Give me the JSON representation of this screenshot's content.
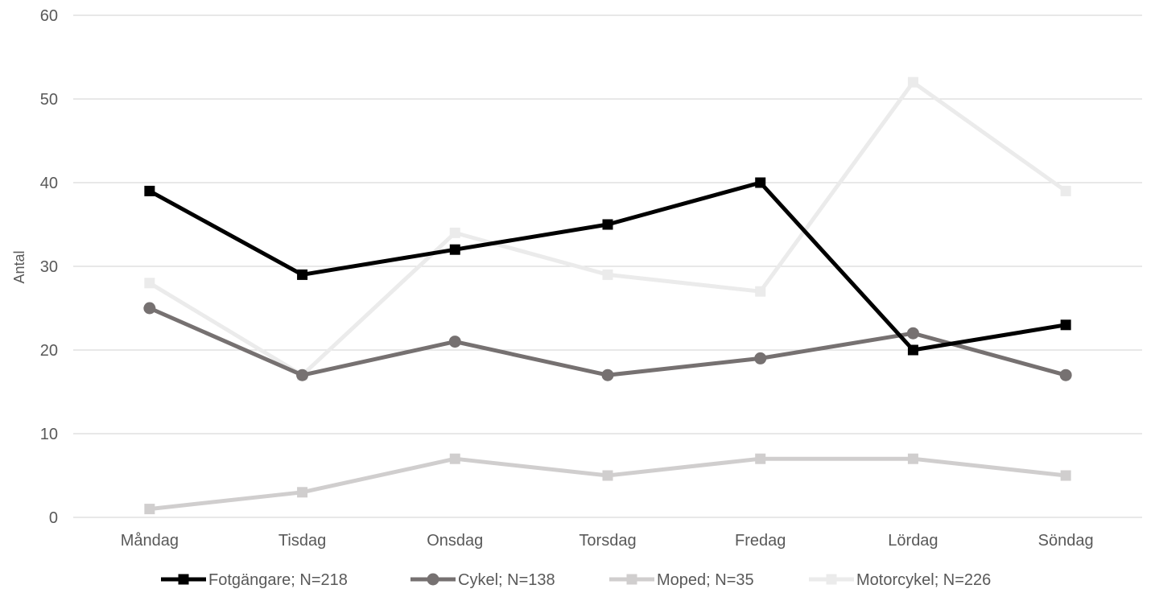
{
  "chart_data": {
    "type": "line",
    "title": "",
    "xlabel": "",
    "ylabel": "Antal",
    "ylim": [
      0,
      60
    ],
    "yticks": [
      "0",
      "10",
      "20",
      "30",
      "40",
      "50",
      "60"
    ],
    "grid": true,
    "legend_position": "bottom",
    "categories": [
      "Måndag",
      "Tisdag",
      "Onsdag",
      "Torsdag",
      "Fredag",
      "Lördag",
      "Söndag"
    ],
    "series": [
      {
        "name": "Fotgängare; N=218",
        "color": "#000000",
        "marker": "square",
        "values": [
          39,
          29,
          32,
          35,
          40,
          20,
          23
        ]
      },
      {
        "name": "Cykel; N=138",
        "color": "#767171",
        "marker": "circle",
        "values": [
          25,
          17,
          21,
          17,
          19,
          22,
          17
        ]
      },
      {
        "name": "Moped; N=35",
        "color": "#d0cece",
        "marker": "square",
        "values": [
          1,
          3,
          7,
          5,
          7,
          7,
          5
        ]
      },
      {
        "name": "Motorcykel; N=226",
        "color": "#ebebeb",
        "marker": "square",
        "values": [
          28,
          17,
          34,
          29,
          27,
          52,
          39
        ]
      }
    ]
  }
}
